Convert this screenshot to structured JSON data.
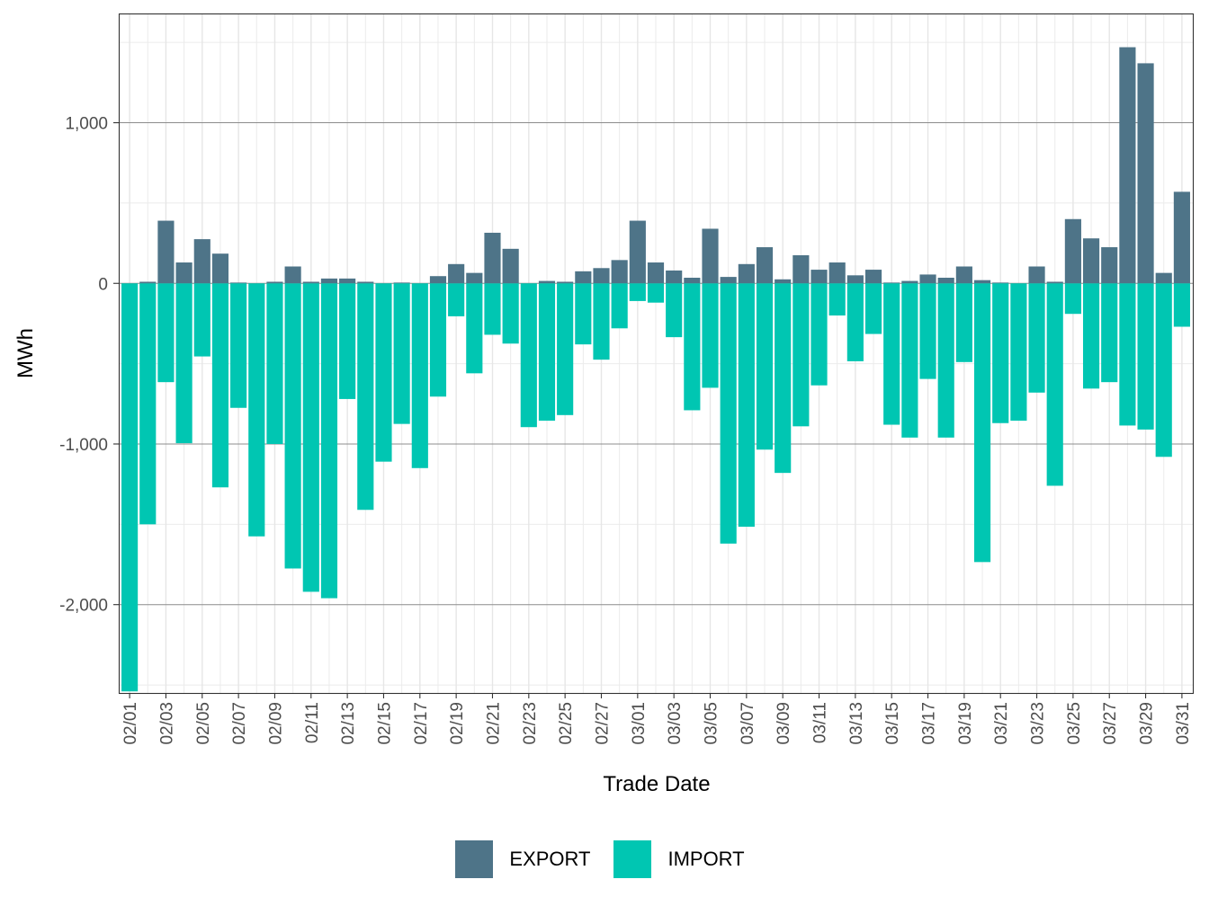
{
  "chart_data": {
    "type": "bar",
    "stacking": "diverging",
    "xlabel": "Trade Date",
    "ylabel": "MWh",
    "ylim": [
      -2550,
      1680
    ],
    "y_ticks": [
      -2000,
      -1000,
      0,
      1000
    ],
    "y_tick_labels": [
      "-2,000",
      "-1,000",
      "0",
      "1,000"
    ],
    "categories": [
      "02/01",
      "02/02",
      "02/03",
      "02/04",
      "02/05",
      "02/06",
      "02/07",
      "02/08",
      "02/09",
      "02/10",
      "02/11",
      "02/12",
      "02/13",
      "02/14",
      "02/15",
      "02/16",
      "02/17",
      "02/18",
      "02/19",
      "02/20",
      "02/21",
      "02/22",
      "02/23",
      "02/24",
      "02/25",
      "02/26",
      "02/27",
      "02/28",
      "03/01",
      "03/02",
      "03/03",
      "03/04",
      "03/05",
      "03/06",
      "03/07",
      "03/08",
      "03/09",
      "03/10",
      "03/11",
      "03/12",
      "03/13",
      "03/14",
      "03/15",
      "03/16",
      "03/17",
      "03/18",
      "03/19",
      "03/20",
      "03/21",
      "03/22",
      "03/23",
      "03/24",
      "03/25",
      "03/26",
      "03/27",
      "03/28",
      "03/29",
      "03/30",
      "03/31"
    ],
    "x_tick_labels": [
      "02/01",
      "02/03",
      "02/05",
      "02/07",
      "02/09",
      "02/11",
      "02/13",
      "02/15",
      "02/17",
      "02/19",
      "02/21",
      "02/23",
      "02/25",
      "02/27",
      "03/01",
      "03/03",
      "03/05",
      "03/07",
      "03/09",
      "03/11",
      "03/13",
      "03/15",
      "03/17",
      "03/19",
      "03/21",
      "03/23",
      "03/25",
      "03/27",
      "03/29",
      "03/31"
    ],
    "grid": true,
    "legend_position": "bottom",
    "series": [
      {
        "name": "EXPORT",
        "color": "#4e7488",
        "values": [
          0,
          10,
          390,
          130,
          275,
          185,
          5,
          0,
          10,
          105,
          10,
          30,
          30,
          10,
          0,
          5,
          0,
          45,
          120,
          65,
          315,
          215,
          0,
          15,
          10,
          75,
          95,
          145,
          390,
          130,
          80,
          35,
          340,
          40,
          120,
          225,
          25,
          175,
          85,
          130,
          50,
          85,
          5,
          15,
          55,
          35,
          105,
          20,
          5,
          0,
          105,
          10,
          400,
          280,
          225,
          1470,
          1370,
          65,
          570
        ]
      },
      {
        "name": "IMPORT",
        "color": "#00c6b2",
        "values": [
          -2540,
          -1500,
          -615,
          -995,
          -455,
          -1270,
          -775,
          -1575,
          -1000,
          -1775,
          -1920,
          -1960,
          -720,
          -1410,
          -1110,
          -875,
          -1150,
          -705,
          -205,
          -560,
          -320,
          -375,
          -895,
          -855,
          -820,
          -380,
          -475,
          -280,
          -110,
          -120,
          -335,
          -790,
          -650,
          -1620,
          -1515,
          -1035,
          -1180,
          -890,
          -635,
          -200,
          -485,
          -315,
          -880,
          -960,
          -595,
          -960,
          -490,
          -1735,
          -870,
          -855,
          -680,
          -1260,
          -190,
          -655,
          -615,
          -885,
          -910,
          -1080,
          -270
        ]
      }
    ]
  },
  "legend": {
    "export_label": "EXPORT",
    "import_label": "IMPORT"
  }
}
